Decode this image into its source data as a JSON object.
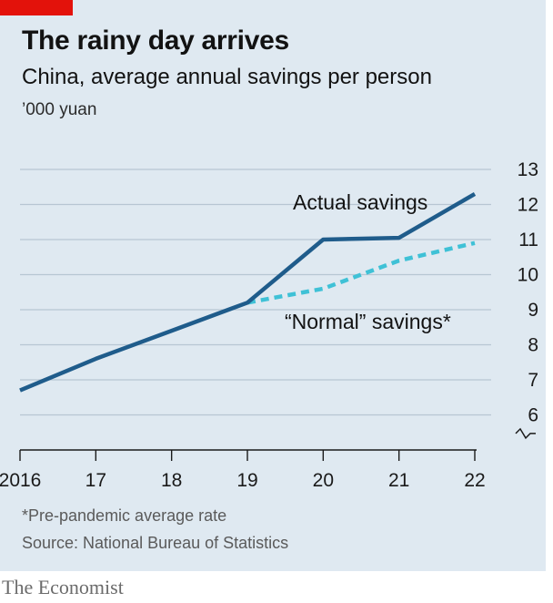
{
  "header": {
    "title": "The rainy day arrives",
    "subtitle": "China, average annual savings per person",
    "unit": "’000 yuan"
  },
  "footer": {
    "footnote": "*Pre-pandemic average rate",
    "source": "Source: National Bureau of Statistics",
    "brand": "The Economist"
  },
  "colors": {
    "background": "#dfe9f1",
    "accent_tag": "#e3120b",
    "actual": "#1f5c8b",
    "normal": "#3fc1d6",
    "grid": "#b7c6d3",
    "axis": "#1a1a1a"
  },
  "chart_data": {
    "type": "line",
    "x": [
      2016,
      2017,
      2018,
      2019,
      2020,
      2021,
      2022
    ],
    "x_tick_labels": [
      "2016",
      "17",
      "18",
      "19",
      "20",
      "21",
      "22"
    ],
    "y_ticks": [
      6,
      7,
      8,
      9,
      10,
      11,
      12,
      13
    ],
    "ylim": [
      5,
      13
    ],
    "y_axis_break": true,
    "y_axis_position": "right",
    "grid": true,
    "series": [
      {
        "name": "Actual savings",
        "style": "solid",
        "x": [
          2016,
          2017,
          2018,
          2019,
          2020,
          2021,
          2022
        ],
        "values": [
          6.7,
          7.6,
          8.4,
          9.2,
          11.0,
          11.05,
          12.3
        ]
      },
      {
        "name": "“Normal” savings*",
        "style": "dashed",
        "x": [
          2019,
          2020,
          2021,
          2022
        ],
        "values": [
          9.2,
          9.6,
          10.4,
          10.9
        ]
      }
    ]
  }
}
